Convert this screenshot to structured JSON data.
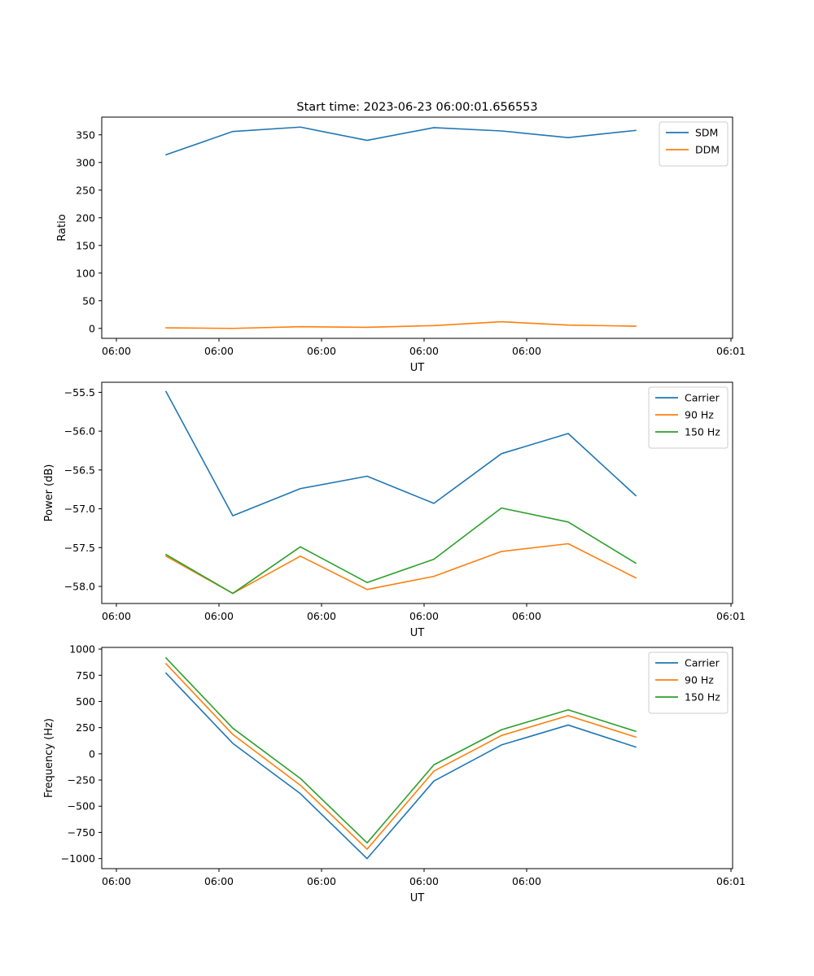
{
  "figure_title": "Start time: 2023-06-23 06:00:01.656553",
  "colors": {
    "blue": "#1f77b4",
    "orange": "#ff7f0e",
    "green": "#2ca02c"
  },
  "chart_data": [
    {
      "type": "line",
      "title": "Start time: 2023-06-23 06:00:01.656553",
      "xlabel": "UT",
      "ylabel": "Ratio",
      "xtick_labels": [
        "06:00",
        "06:00",
        "06:00",
        "06:00",
        "06:00",
        "06:01"
      ],
      "ytick_values": [
        0,
        50,
        100,
        150,
        200,
        250,
        300,
        350
      ],
      "ylim": [
        -18,
        382
      ],
      "x": [
        1,
        2,
        3,
        4,
        5,
        6,
        7,
        8
      ],
      "series": [
        {
          "name": "SDM",
          "color": "#1f77b4",
          "values": [
            314,
            356,
            364,
            340,
            363,
            357,
            345,
            358
          ]
        },
        {
          "name": "DDM",
          "color": "#ff7f0e",
          "values": [
            1,
            0,
            3,
            2,
            5,
            12,
            6,
            4
          ]
        }
      ],
      "legend": "upper right",
      "grid": false
    },
    {
      "type": "line",
      "title": "",
      "xlabel": "UT",
      "ylabel": "Power (dB)",
      "xtick_labels": [
        "06:00",
        "06:00",
        "06:00",
        "06:00",
        "06:00",
        "06:01"
      ],
      "ytick_values": [
        -55.5,
        -56.0,
        -56.5,
        -57.0,
        -57.5,
        -58.0
      ],
      "ylim": [
        -58.22,
        -55.37
      ],
      "x": [
        1,
        2,
        3,
        4,
        5,
        6,
        7,
        8
      ],
      "series": [
        {
          "name": "Carrier",
          "color": "#1f77b4",
          "values": [
            -55.49,
            -57.09,
            -56.74,
            -56.58,
            -56.93,
            -56.29,
            -56.03,
            -56.83
          ]
        },
        {
          "name": "90 Hz",
          "color": "#ff7f0e",
          "values": [
            -57.61,
            -58.09,
            -57.61,
            -58.04,
            -57.87,
            -57.55,
            -57.45,
            -57.89
          ]
        },
        {
          "name": "150 Hz",
          "color": "#2ca02c",
          "values": [
            -57.59,
            -58.09,
            -57.49,
            -57.95,
            -57.65,
            -56.99,
            -57.17,
            -57.7
          ]
        }
      ],
      "legend": "upper right",
      "grid": false
    },
    {
      "type": "line",
      "title": "",
      "xlabel": "UT",
      "ylabel": "Frequency (Hz)",
      "xtick_labels": [
        "06:00",
        "06:00",
        "06:00",
        "06:00",
        "06:00",
        "06:01"
      ],
      "ytick_values": [
        1000,
        750,
        500,
        250,
        0,
        -250,
        -500,
        -750,
        -1000
      ],
      "ylim": [
        -1096,
        1016
      ],
      "x": [
        1,
        2,
        3,
        4,
        5,
        6,
        7,
        8
      ],
      "series": [
        {
          "name": "Carrier",
          "color": "#1f77b4",
          "values": [
            770,
            100,
            -380,
            -1000,
            -260,
            85,
            275,
            65
          ]
        },
        {
          "name": "90 Hz",
          "color": "#ff7f0e",
          "values": [
            860,
            185,
            -300,
            -910,
            -165,
            175,
            365,
            160
          ]
        },
        {
          "name": "150 Hz",
          "color": "#2ca02c",
          "values": [
            915,
            245,
            -235,
            -850,
            -105,
            230,
            420,
            215
          ]
        }
      ],
      "legend": "upper right",
      "grid": false
    }
  ]
}
